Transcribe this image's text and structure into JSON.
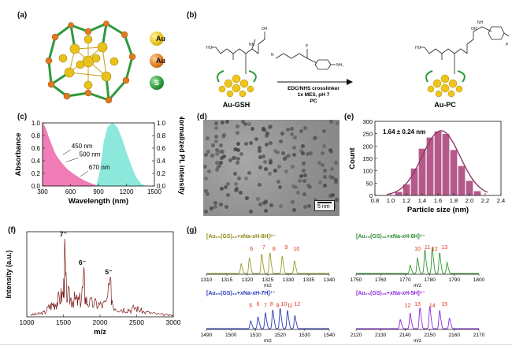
{
  "panel_labels": {
    "a": "(a)",
    "b": "(b)",
    "c": "(c)",
    "d": "(d)",
    "e": "(e)",
    "f": "(f)",
    "g": "(g)"
  },
  "legend_a": [
    {
      "label": "Au",
      "color": "#e8c21a"
    },
    {
      "label": "Au",
      "color": "#e07a1f"
    },
    {
      "label": "S",
      "color": "#2e9a3c"
    }
  ],
  "panel_b": {
    "left_label": "Au-GSH",
    "right_label": "Au-PC",
    "arrow_text": [
      "EDC/NHS crosslinker",
      "1x MES, pH 7",
      "PC"
    ],
    "reagent_group": "NH₂",
    "cluster_color": "#f0c419"
  },
  "chart_data": [
    {
      "id": "c",
      "type": "area",
      "xlabel": "Wavelength (nm)",
      "ylabel": "Absorbance",
      "y2label": "Normalized PL intensity",
      "xlim": [
        300,
        1500
      ],
      "ylim": [
        0,
        1.0
      ],
      "xticks": [
        "300",
        "600",
        "900",
        "1200",
        "1500"
      ],
      "yticks": [
        "0.0",
        "0.2",
        "0.4",
        "0.6",
        "0.8",
        "1.0"
      ],
      "y2ticks": [
        "0.0",
        "0.2",
        "0.4",
        "0.6",
        "0.8",
        "1.0"
      ],
      "annotations": [
        "450 nm",
        "500 nm",
        "670 nm"
      ],
      "series": [
        {
          "color": "#f06fb0",
          "x": [
            300,
            330,
            370,
            420,
            450,
            500,
            560,
            620,
            670,
            750,
            850,
            900
          ],
          "y": [
            1.0,
            0.92,
            0.75,
            0.56,
            0.47,
            0.37,
            0.27,
            0.2,
            0.15,
            0.08,
            0.02,
            0.0
          ]
        },
        {
          "color": "#7fe6d6",
          "x": [
            880,
            920,
            960,
            1000,
            1050,
            1100,
            1150,
            1200,
            1250,
            1300,
            1350,
            1400
          ],
          "y": [
            0.0,
            0.25,
            0.7,
            0.93,
            1.0,
            0.93,
            0.75,
            0.52,
            0.32,
            0.14,
            0.04,
            0.0
          ]
        }
      ]
    },
    {
      "id": "e",
      "type": "bar",
      "title": "1.64 ± 0.24 nm",
      "xlabel": "Particle size (nm)",
      "ylabel": "Count",
      "ylim": [
        0,
        300
      ],
      "yticks": [
        "0",
        "50",
        "100",
        "150",
        "200",
        "250",
        "300"
      ],
      "xticks": [
        "0.8",
        "1.0",
        "1.2",
        "1.4",
        "1.6",
        "1.8",
        "2.0",
        "2.2",
        "2.4"
      ],
      "bar_color": "#b5598a",
      "fit_color": "#8c3a68",
      "x": [
        1.1,
        1.2,
        1.3,
        1.4,
        1.5,
        1.6,
        1.7,
        1.8,
        1.9,
        2.0,
        2.1
      ],
      "values": [
        15,
        45,
        110,
        190,
        235,
        260,
        250,
        185,
        120,
        60,
        18
      ]
    },
    {
      "id": "f",
      "type": "line",
      "xlabel": "m/z",
      "ylabel": "Intensity (a.u.)",
      "xlim": [
        1000,
        3000
      ],
      "xticks": [
        "1000",
        "1500",
        "2000",
        "2500",
        "3000"
      ],
      "color": "#7a1818",
      "annotations": [
        {
          "x": 1520,
          "text": "7⁻"
        },
        {
          "x": 1780,
          "text": "6⁻"
        },
        {
          "x": 2140,
          "text": "5⁻"
        }
      ],
      "x": [
        1050,
        1100,
        1150,
        1200,
        1250,
        1300,
        1340,
        1380,
        1420,
        1460,
        1500,
        1520,
        1540,
        1580,
        1620,
        1660,
        1700,
        1740,
        1780,
        1800,
        1840,
        1900,
        1960,
        2020,
        2080,
        2140,
        2180,
        2240,
        2300,
        2360,
        2420,
        2480,
        2540,
        2600,
        2680,
        2760,
        2840,
        2920,
        3000
      ],
      "y": [
        0.03,
        0.04,
        0.05,
        0.06,
        0.08,
        0.16,
        0.2,
        0.23,
        0.27,
        0.34,
        0.4,
        0.97,
        0.42,
        0.33,
        0.3,
        0.29,
        0.26,
        0.3,
        0.62,
        0.3,
        0.25,
        0.22,
        0.22,
        0.2,
        0.22,
        0.5,
        0.2,
        0.15,
        0.13,
        0.14,
        0.12,
        0.16,
        0.12,
        0.08,
        0.07,
        0.05,
        0.04,
        0.03,
        0.02
      ]
    },
    {
      "id": "g1",
      "type": "line",
      "title": "[Au₂₅(GS)₁₈+xNa-xH-8H]⁸⁻",
      "xlabel": "m/z",
      "color": "#9b9b2a",
      "title_color": "#8a8a10",
      "label_color": "#e0301a",
      "xlim": [
        1310,
        1340
      ],
      "xticks": [
        "1310",
        "1315",
        "1320",
        "1325",
        "1330",
        "1335",
        "1340"
      ],
      "peaks": [
        1318.5,
        1320.5,
        1323.5,
        1325.5,
        1328.5,
        1331.5
      ],
      "heights": [
        0.35,
        0.55,
        0.7,
        0.75,
        0.62,
        0.45
      ],
      "peak_labels": [
        "6",
        "7",
        "8",
        "9",
        "10"
      ],
      "label_x": [
        1321,
        1324,
        1326.5,
        1329.5,
        1332
      ]
    },
    {
      "id": "g2",
      "type": "line",
      "title": "[Au₂₅(GS)₁₈+xNa-xH-6H]⁶⁻",
      "xlabel": "m/z",
      "color": "#2e9a2e",
      "title_color": "#2e8a2e",
      "label_color": "#e0301a",
      "xlim": [
        1750,
        1800
      ],
      "xticks": [
        "1750",
        "1760",
        "1770",
        "1780",
        "1790",
        "1800"
      ],
      "peaks": [
        1772,
        1775,
        1778,
        1781,
        1784,
        1787
      ],
      "heights": [
        0.3,
        0.55,
        0.85,
        0.95,
        0.75,
        0.4
      ],
      "peak_labels": [
        "10",
        "11",
        "12",
        "13"
      ],
      "label_x": [
        1775,
        1779,
        1782,
        1786
      ]
    },
    {
      "id": "g3",
      "type": "line",
      "title": "[Au₂₅(GS)₁₈+xNa-xH-7H]⁷⁻",
      "xlabel": "m/z",
      "color": "#2a3ab8",
      "title_color": "#2a3ab8",
      "label_color": "#e0301a",
      "xlim": [
        1490,
        1540
      ],
      "xticks": [
        "1490",
        "1500",
        "1510",
        "1520",
        "1530",
        "1540"
      ],
      "peaks": [
        1508,
        1511,
        1514,
        1517,
        1520,
        1523,
        1526
      ],
      "heights": [
        0.3,
        0.45,
        0.6,
        0.72,
        0.78,
        0.7,
        0.5
      ],
      "peak_labels": [
        "5",
        "6",
        "7",
        "8",
        "9",
        "10",
        "11",
        "12"
      ],
      "label_x": [
        1508,
        1511,
        1514,
        1516.5,
        1519,
        1521.5,
        1524,
        1527
      ]
    },
    {
      "id": "g4",
      "type": "line",
      "title": "[Au₂₅(GS)₁₈+xNa-xH-5H]⁵⁻",
      "xlabel": "m/z",
      "color": "#8a2ad8",
      "title_color": "#8a2ad8",
      "label_color": "#e0301a",
      "xlim": [
        2120,
        2170
      ],
      "xticks": [
        "2120",
        "2130",
        "2140",
        "2150",
        "2160",
        "2170"
      ],
      "peaks": [
        2138,
        2142,
        2146,
        2150,
        2154,
        2158
      ],
      "heights": [
        0.35,
        0.6,
        0.8,
        0.85,
        0.7,
        0.4
      ],
      "peak_labels": [
        "12",
        "13",
        "14",
        "15"
      ],
      "label_x": [
        2141,
        2145,
        2151,
        2156
      ]
    }
  ],
  "panel_d": {
    "scalebar": "5 nm"
  }
}
